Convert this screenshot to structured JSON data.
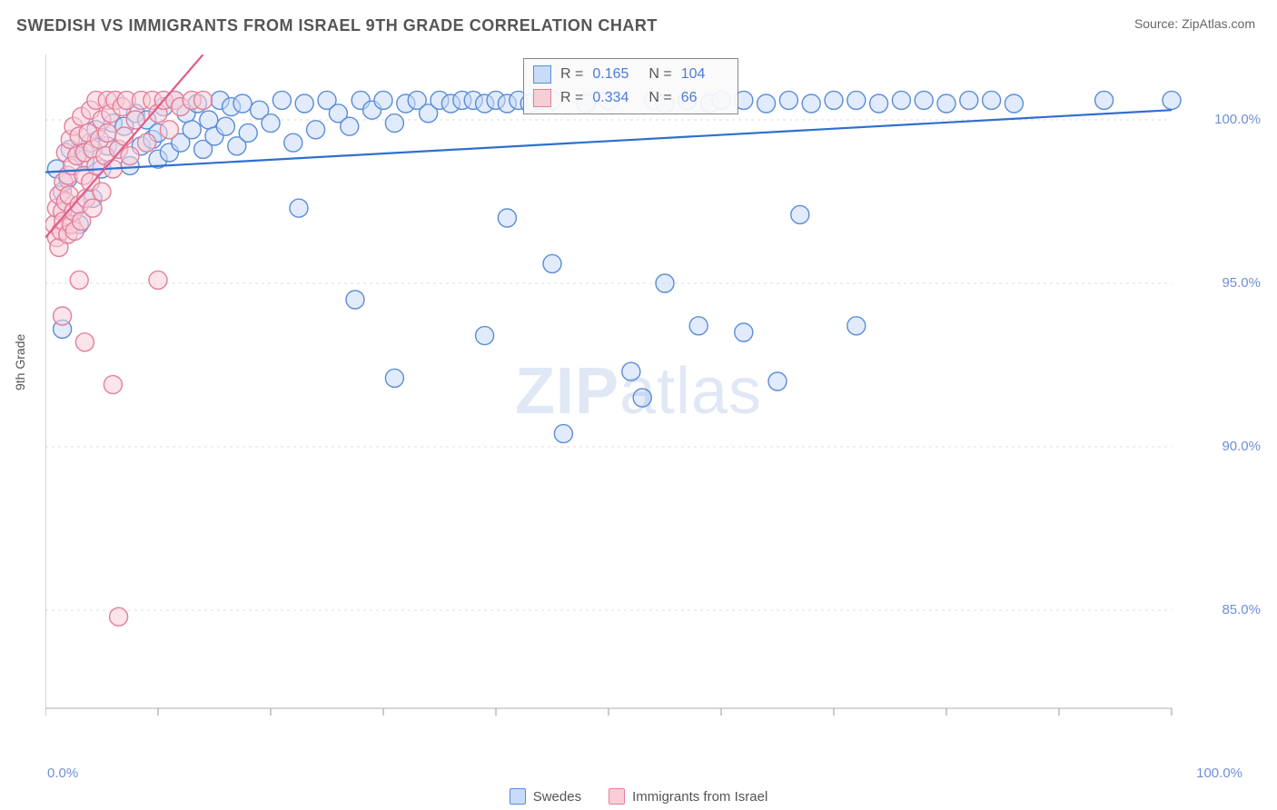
{
  "title": "SWEDISH VS IMMIGRANTS FROM ISRAEL 9TH GRADE CORRELATION CHART",
  "source_prefix": "Source: ",
  "source_name": "ZipAtlas.com",
  "y_axis_label": "9th Grade",
  "watermark_a": "ZIP",
  "watermark_b": "atlas",
  "chart": {
    "type": "scatter",
    "xlim": [
      0,
      100
    ],
    "ylim": [
      82,
      102
    ],
    "y_ticks": [
      85.0,
      90.0,
      95.0,
      100.0
    ],
    "y_tick_labels": [
      "85.0%",
      "90.0%",
      "95.0%",
      "100.0%"
    ],
    "x_end_labels": [
      "0.0%",
      "100.0%"
    ],
    "x_tick_positions": [
      0,
      10,
      20,
      30,
      40,
      50,
      60,
      70,
      80,
      90,
      100
    ],
    "background_color": "#ffffff",
    "grid_color": "#dcdcdc",
    "axis_color": "#bfbfbf",
    "tick_color": "#999999",
    "label_color": "#6f8fd8",
    "point_radius": 10,
    "point_stroke_width": 1.4,
    "trend_line_width": 2.2
  },
  "series": [
    {
      "key": "swedes",
      "label": "Swedes",
      "fill": "#c8dbf7",
      "stroke": "#5a8cd8",
      "fill_opacity": 0.55,
      "stats": {
        "R_label": "R =",
        "R": "0.165",
        "N_label": "N =",
        "N": "104"
      },
      "trend": {
        "x1": 0,
        "y1": 98.4,
        "x2": 100,
        "y2": 100.3,
        "color": "#2f6fd0"
      },
      "points": [
        [
          1,
          98.5
        ],
        [
          1.5,
          97.8
        ],
        [
          1.5,
          93.6
        ],
        [
          2,
          98.2
        ],
        [
          2.2,
          99.1
        ],
        [
          2.5,
          97.2
        ],
        [
          3,
          99.0
        ],
        [
          3,
          96.8
        ],
        [
          3.5,
          98.8
        ],
        [
          4,
          99.3
        ],
        [
          4.2,
          97.6
        ],
        [
          4.5,
          99.7
        ],
        [
          5,
          98.5
        ],
        [
          5.5,
          99.2
        ],
        [
          6,
          99.9
        ],
        [
          6.5,
          99.1
        ],
        [
          7,
          99.8
        ],
        [
          7.5,
          98.6
        ],
        [
          8,
          100.2
        ],
        [
          8.5,
          99.2
        ],
        [
          9,
          100.0
        ],
        [
          9.5,
          99.4
        ],
        [
          10,
          98.8
        ],
        [
          10,
          99.6
        ],
        [
          10.5,
          100.4
        ],
        [
          11,
          99.0
        ],
        [
          11.5,
          100.6
        ],
        [
          12,
          99.3
        ],
        [
          12.5,
          100.2
        ],
        [
          13,
          99.7
        ],
        [
          13.5,
          100.5
        ],
        [
          14,
          99.1
        ],
        [
          14.5,
          100.0
        ],
        [
          15,
          99.5
        ],
        [
          15.5,
          100.6
        ],
        [
          16,
          99.8
        ],
        [
          16.5,
          100.4
        ],
        [
          17,
          99.2
        ],
        [
          17.5,
          100.5
        ],
        [
          18,
          99.6
        ],
        [
          19,
          100.3
        ],
        [
          20,
          99.9
        ],
        [
          21,
          100.6
        ],
        [
          22,
          99.3
        ],
        [
          22.5,
          97.3
        ],
        [
          23,
          100.5
        ],
        [
          24,
          99.7
        ],
        [
          25,
          100.6
        ],
        [
          26,
          100.2
        ],
        [
          27,
          99.8
        ],
        [
          27.5,
          94.5
        ],
        [
          28,
          100.6
        ],
        [
          29,
          100.3
        ],
        [
          30,
          100.6
        ],
        [
          31,
          99.9
        ],
        [
          31,
          92.1
        ],
        [
          32,
          100.5
        ],
        [
          33,
          100.6
        ],
        [
          34,
          100.2
        ],
        [
          35,
          100.6
        ],
        [
          36,
          100.5
        ],
        [
          37,
          100.6
        ],
        [
          38,
          100.6
        ],
        [
          39,
          100.5
        ],
        [
          39,
          93.4
        ],
        [
          40,
          100.6
        ],
        [
          41,
          100.5
        ],
        [
          41,
          97.0
        ],
        [
          42,
          100.6
        ],
        [
          43,
          100.5
        ],
        [
          44,
          100.6
        ],
        [
          45,
          100.6
        ],
        [
          45,
          95.6
        ],
        [
          46,
          90.4
        ],
        [
          48,
          100.5
        ],
        [
          50,
          100.6
        ],
        [
          52,
          92.3
        ],
        [
          53,
          91.5
        ],
        [
          54,
          100.6
        ],
        [
          55,
          100.5
        ],
        [
          55,
          95.0
        ],
        [
          57,
          100.6
        ],
        [
          58,
          93.7
        ],
        [
          59,
          100.5
        ],
        [
          60,
          100.6
        ],
        [
          62,
          100.6
        ],
        [
          62,
          93.5
        ],
        [
          64,
          100.5
        ],
        [
          66,
          100.6
        ],
        [
          67,
          97.1
        ],
        [
          65,
          92.0
        ],
        [
          68,
          100.5
        ],
        [
          70,
          100.6
        ],
        [
          72,
          100.6
        ],
        [
          72,
          93.7
        ],
        [
          74,
          100.5
        ],
        [
          76,
          100.6
        ],
        [
          78,
          100.6
        ],
        [
          80,
          100.5
        ],
        [
          82,
          100.6
        ],
        [
          84,
          100.6
        ],
        [
          86,
          100.5
        ],
        [
          94,
          100.6
        ],
        [
          100,
          100.6
        ]
      ]
    },
    {
      "key": "israel",
      "label": "Immigrants from Israel",
      "fill": "#f7cdd8",
      "stroke": "#e27f9a",
      "fill_opacity": 0.55,
      "stats": {
        "R_label": "R =",
        "R": "0.334",
        "N_label": "N =",
        "N": "66"
      },
      "trend": {
        "x1": 0,
        "y1": 96.4,
        "x2": 14,
        "y2": 102.0,
        "color": "#e05c88"
      },
      "points": [
        [
          0.8,
          96.8
        ],
        [
          1.0,
          96.4
        ],
        [
          1.0,
          97.3
        ],
        [
          1.2,
          96.1
        ],
        [
          1.2,
          97.7
        ],
        [
          1.4,
          96.6
        ],
        [
          1.5,
          97.2
        ],
        [
          1.5,
          94.0
        ],
        [
          1.6,
          98.1
        ],
        [
          1.6,
          96.9
        ],
        [
          1.8,
          97.5
        ],
        [
          1.8,
          99.0
        ],
        [
          2.0,
          96.5
        ],
        [
          2.0,
          98.3
        ],
        [
          2.1,
          97.7
        ],
        [
          2.2,
          99.4
        ],
        [
          2.3,
          96.8
        ],
        [
          2.4,
          98.6
        ],
        [
          2.5,
          97.2
        ],
        [
          2.5,
          99.8
        ],
        [
          2.6,
          96.6
        ],
        [
          2.8,
          98.9
        ],
        [
          3.0,
          97.4
        ],
        [
          3.0,
          95.1
        ],
        [
          3.0,
          99.5
        ],
        [
          3.2,
          96.9
        ],
        [
          3.2,
          100.1
        ],
        [
          3.4,
          98.3
        ],
        [
          3.5,
          99.0
        ],
        [
          3.5,
          93.2
        ],
        [
          3.6,
          97.6
        ],
        [
          3.8,
          99.6
        ],
        [
          4.0,
          98.1
        ],
        [
          4.0,
          100.3
        ],
        [
          4.2,
          97.3
        ],
        [
          4.2,
          99.1
        ],
        [
          4.5,
          98.6
        ],
        [
          4.5,
          100.6
        ],
        [
          4.8,
          99.4
        ],
        [
          5.0,
          97.8
        ],
        [
          5.0,
          100.0
        ],
        [
          5.3,
          98.9
        ],
        [
          5.5,
          100.6
        ],
        [
          5.5,
          99.6
        ],
        [
          5.8,
          100.2
        ],
        [
          6.0,
          98.5
        ],
        [
          6.0,
          91.9
        ],
        [
          6.2,
          100.6
        ],
        [
          6.5,
          99.1
        ],
        [
          6.5,
          84.8
        ],
        [
          6.8,
          100.4
        ],
        [
          7.0,
          99.5
        ],
        [
          7.2,
          100.6
        ],
        [
          7.5,
          98.9
        ],
        [
          8.0,
          100.0
        ],
        [
          8.5,
          100.6
        ],
        [
          9.0,
          99.3
        ],
        [
          9.5,
          100.6
        ],
        [
          10.0,
          100.2
        ],
        [
          10.5,
          100.6
        ],
        [
          10,
          95.1
        ],
        [
          11.0,
          99.7
        ],
        [
          11.5,
          100.6
        ],
        [
          12.0,
          100.4
        ],
        [
          13.0,
          100.6
        ],
        [
          14.0,
          100.6
        ]
      ]
    }
  ],
  "legend_bottom": [
    "Swedes",
    "Immigrants from Israel"
  ]
}
